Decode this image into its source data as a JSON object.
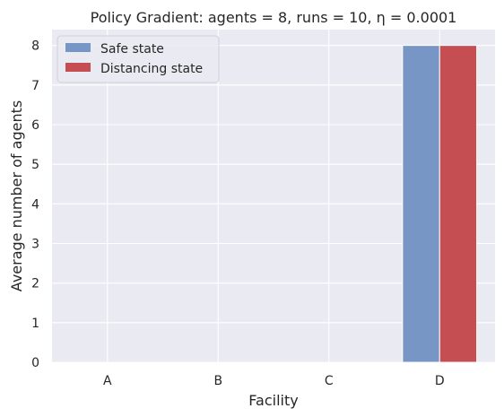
{
  "chart_data": {
    "type": "bar",
    "title": "Policy Gradient: agents = 8, runs = 10, η = 0.0001",
    "xlabel": "Facility",
    "ylabel": "Average number of agents",
    "categories": [
      "A",
      "B",
      "C",
      "D"
    ],
    "series": [
      {
        "name": "Safe state",
        "values": [
          0,
          0,
          0,
          8
        ],
        "color": "#7795c5"
      },
      {
        "name": "Distancing state",
        "values": [
          0,
          0,
          0,
          8
        ],
        "color": "#c44e52"
      }
    ],
    "ylim": [
      0,
      8.4
    ],
    "yticks": [
      "0",
      "1",
      "2",
      "3",
      "4",
      "5",
      "6",
      "7",
      "8"
    ],
    "grid": true,
    "legend_position": "top-left",
    "plot_background": "#eaeaf2",
    "grid_color": "#ffffff"
  }
}
